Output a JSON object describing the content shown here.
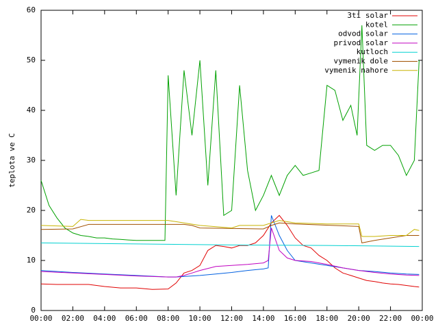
{
  "chart_data": {
    "type": "line",
    "ylabel": "teplota ve C",
    "xlim": [
      0,
      24
    ],
    "ylim": [
      0,
      60
    ],
    "xticks": [
      {
        "value": 0,
        "label": "00:00"
      },
      {
        "value": 2,
        "label": "02:00"
      },
      {
        "value": 4,
        "label": "04:00"
      },
      {
        "value": 6,
        "label": "06:00"
      },
      {
        "value": 8,
        "label": "08:00"
      },
      {
        "value": 10,
        "label": "10:00"
      },
      {
        "value": 12,
        "label": "12:00"
      },
      {
        "value": 14,
        "label": "14:00"
      },
      {
        "value": 16,
        "label": "16:00"
      },
      {
        "value": 18,
        "label": "18:00"
      },
      {
        "value": 20,
        "label": "20:00"
      },
      {
        "value": 22,
        "label": "22:00"
      },
      {
        "value": 24,
        "label": "00:00"
      }
    ],
    "yticks": [
      0,
      10,
      20,
      30,
      40,
      50,
      60
    ],
    "legend": "top-right",
    "series": [
      {
        "name": "3ti solar",
        "color": "#e00000",
        "x": [
          0,
          1,
          2,
          3,
          4,
          5,
          6,
          7,
          8,
          8.5,
          9,
          9.5,
          10,
          10.5,
          11,
          11.5,
          12,
          12.5,
          13,
          13.5,
          14,
          14.5,
          15,
          15.5,
          16,
          16.5,
          17,
          17.5,
          18,
          18.5,
          19,
          19.5,
          20,
          20.5,
          21,
          21.5,
          22,
          22.5,
          23,
          23.5,
          23.8
        ],
        "values": [
          5.3,
          5.2,
          5.2,
          5.2,
          4.8,
          4.5,
          4.5,
          4.2,
          4.3,
          5.5,
          7.5,
          8,
          9,
          12,
          13,
          12.8,
          12.5,
          13,
          13,
          13.5,
          15,
          17.5,
          19,
          17,
          14.5,
          13,
          12.5,
          11,
          10,
          8.5,
          7.5,
          7,
          6.5,
          6,
          5.8,
          5.5,
          5.3,
          5.2,
          5,
          4.8,
          4.7
        ]
      },
      {
        "name": "kotel",
        "color": "#00a000",
        "x": [
          0,
          0.5,
          1,
          1.5,
          2,
          2.5,
          3,
          3.5,
          4,
          4.5,
          5,
          5.5,
          6,
          6.5,
          7,
          7.5,
          7.8,
          8,
          8.5,
          9,
          9.5,
          10,
          10.5,
          11,
          11.5,
          12,
          12.5,
          13,
          13.5,
          14,
          14.5,
          15,
          15.5,
          16,
          16.5,
          17,
          17.5,
          18,
          18.5,
          19,
          19.5,
          19.9,
          20.2,
          20.5,
          21,
          21.5,
          22,
          22.5,
          23,
          23.5,
          23.8
        ],
        "values": [
          26,
          21,
          18.5,
          16.5,
          15.5,
          15,
          14.8,
          14.5,
          14.5,
          14.3,
          14.2,
          14.1,
          14,
          14,
          14,
          14,
          14,
          47,
          23,
          48,
          35,
          50,
          25,
          48,
          19,
          20,
          45,
          28,
          20,
          23,
          27,
          23,
          27,
          29,
          27,
          27.5,
          28,
          45,
          44,
          38,
          41,
          35,
          57,
          33,
          32,
          33,
          33,
          31,
          27,
          30,
          50
        ]
      },
      {
        "name": "odvod solar",
        "color": "#0060e0",
        "x": [
          0,
          2,
          4,
          6,
          8,
          8.5,
          9,
          10,
          11,
          12,
          13,
          14,
          14.3,
          14.5,
          15,
          15.5,
          16,
          17,
          18,
          19,
          20,
          21,
          22,
          23,
          23.8
        ],
        "values": [
          8,
          7.6,
          7.3,
          7,
          6.7,
          6.7,
          6.8,
          7,
          7.3,
          7.6,
          8,
          8.3,
          8.5,
          19,
          15,
          12,
          10,
          9.5,
          9,
          8.5,
          8,
          7.8,
          7.5,
          7.3,
          7.2
        ]
      },
      {
        "name": "privod solar",
        "color": "#c000c0",
        "x": [
          0,
          2,
          4,
          6,
          8,
          8.5,
          9,
          9.5,
          10,
          11,
          12,
          13,
          14,
          14.3,
          14.5,
          15,
          15.5,
          16,
          17,
          18,
          19,
          20,
          21,
          22,
          23,
          23.8
        ],
        "values": [
          7.8,
          7.5,
          7.2,
          6.9,
          6.7,
          6.7,
          7,
          7.5,
          8,
          8.8,
          9,
          9.2,
          9.5,
          10,
          16.5,
          12,
          10.5,
          10,
          9.8,
          9.2,
          8.5,
          8,
          7.6,
          7.3,
          7.1,
          7
        ]
      },
      {
        "name": "kutloch",
        "color": "#00d0d0",
        "x": [
          0,
          6,
          12,
          18,
          23.8
        ],
        "values": [
          13.5,
          13.3,
          13.1,
          13,
          12.8
        ]
      },
      {
        "name": "vymenik dole",
        "color": "#a05000",
        "x": [
          0,
          2,
          3,
          9,
          9.5,
          10,
          14,
          14.5,
          15,
          16,
          20,
          20.2,
          21,
          22,
          23,
          23.8
        ],
        "values": [
          16.2,
          16.3,
          17.2,
          17.2,
          17,
          16.5,
          16.3,
          17,
          17.5,
          17.3,
          16.8,
          13.5,
          14,
          14.5,
          15,
          15
        ]
      },
      {
        "name": "vymenik nahore",
        "color": "#c8b400",
        "x": [
          0,
          2,
          2.5,
          3,
          8,
          9,
          10,
          12,
          12.5,
          14,
          15,
          16,
          18,
          20,
          20.2,
          21,
          22,
          23,
          23.5,
          23.8
        ],
        "values": [
          17,
          16.8,
          18.2,
          18,
          18,
          17.5,
          17,
          16.5,
          17,
          17,
          18,
          17.5,
          17.3,
          17.3,
          14.8,
          14.8,
          15,
          15,
          16.2,
          16
        ]
      }
    ]
  }
}
